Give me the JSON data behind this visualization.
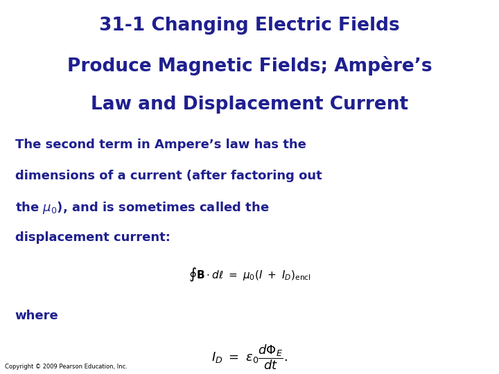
{
  "title_line1": "31-1 Changing Electric Fields",
  "title_line2": "Produce Magnetic Fields; Ampère’s",
  "title_line3": "Law and Displacement Current",
  "title_color": "#1f1f8f",
  "body_color": "#1f1f8f",
  "background_color": "#ffffff",
  "body_text_line1": "The second term in Ampere’s law has the",
  "body_text_line2": "dimensions of a current (after factoring out",
  "body_text_line4": "displacement current:",
  "where_text": "where",
  "copyright_text": "Copyright © 2009 Pearson Education, Inc.",
  "title_fontsize": 19,
  "body_fontsize": 13,
  "where_fontsize": 13,
  "eq1_fontsize": 11,
  "eq2_fontsize": 13,
  "copyright_fontsize": 6
}
